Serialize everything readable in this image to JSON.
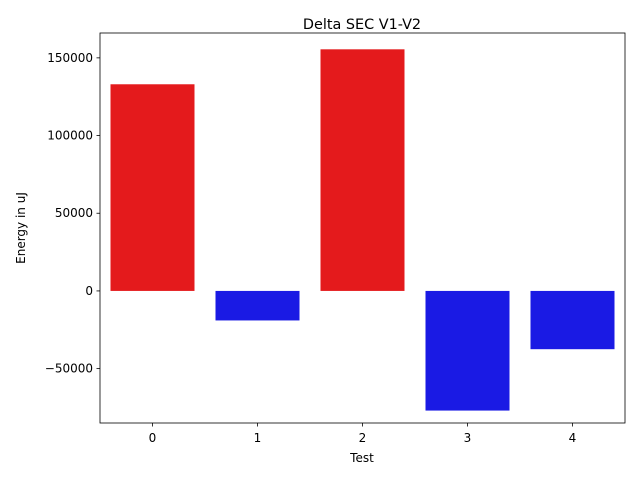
{
  "chart_data": {
    "type": "bar",
    "title": "Delta SEC V1-V2",
    "xlabel": "Test",
    "ylabel": "Energy in uJ",
    "categories": [
      "0",
      "1",
      "2",
      "3",
      "4"
    ],
    "values": [
      133000,
      -19000,
      155500,
      -77000,
      -37500
    ],
    "bar_colors": [
      "#e41a1c",
      "#1a1ae4",
      "#e41a1c",
      "#1a1ae4",
      "#1a1ae4"
    ],
    "yticks": [
      -50000,
      0,
      50000,
      100000,
      150000
    ],
    "ytick_labels": [
      "−50000",
      "0",
      "50000",
      "100000",
      "150000"
    ],
    "ylim": [
      -85000,
      166000
    ],
    "grid": false,
    "legend": "none"
  }
}
